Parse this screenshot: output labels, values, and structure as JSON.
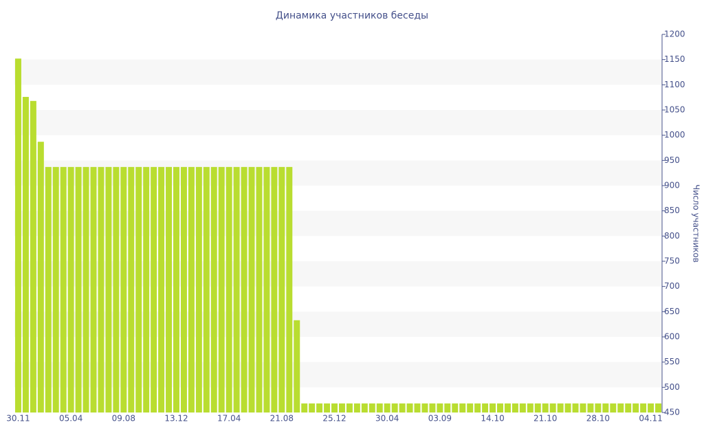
{
  "chart_data": {
    "type": "bar",
    "title": "Динамика участников беседы",
    "y_label": "Число участников",
    "categories": [
      "30.11",
      null,
      null,
      null,
      null,
      null,
      null,
      "05.04",
      null,
      null,
      null,
      null,
      null,
      null,
      "09.08",
      null,
      null,
      null,
      null,
      null,
      null,
      "13.12",
      null,
      null,
      null,
      null,
      null,
      null,
      "17.04",
      null,
      null,
      null,
      null,
      null,
      null,
      "21.08",
      null,
      null,
      null,
      null,
      null,
      null,
      "25.12",
      null,
      null,
      null,
      null,
      null,
      null,
      "30.04",
      null,
      null,
      null,
      null,
      null,
      null,
      "03.09",
      null,
      null,
      null,
      null,
      null,
      null,
      "14.10",
      null,
      null,
      null,
      null,
      null,
      null,
      "21.10",
      null,
      null,
      null,
      null,
      null,
      null,
      "28.10",
      null,
      null,
      null,
      null,
      null,
      null,
      "04.11",
      null
    ],
    "values": [
      1152,
      1076,
      1068,
      987,
      937,
      937,
      937,
      937,
      937,
      937,
      937,
      937,
      937,
      937,
      937,
      937,
      937,
      937,
      937,
      937,
      937,
      937,
      937,
      937,
      937,
      937,
      937,
      937,
      937,
      937,
      937,
      937,
      937,
      937,
      937,
      937,
      937,
      633,
      468,
      468,
      468,
      468,
      468,
      468,
      468,
      468,
      468,
      468,
      468,
      468,
      468,
      468,
      468,
      468,
      468,
      468,
      468,
      468,
      468,
      468,
      468,
      468,
      468,
      468,
      468,
      468,
      468,
      468,
      468,
      468,
      468,
      468,
      468,
      468,
      468,
      468,
      468,
      468,
      468,
      468,
      468,
      468,
      468,
      468,
      468,
      468
    ],
    "color": "#b9dd30",
    "ylim": [
      450,
      1200
    ],
    "yticks": [
      450,
      500,
      550,
      600,
      650,
      700,
      750,
      800,
      850,
      900,
      950,
      1000,
      1050,
      1100,
      1150,
      1200
    ],
    "grid": true
  }
}
